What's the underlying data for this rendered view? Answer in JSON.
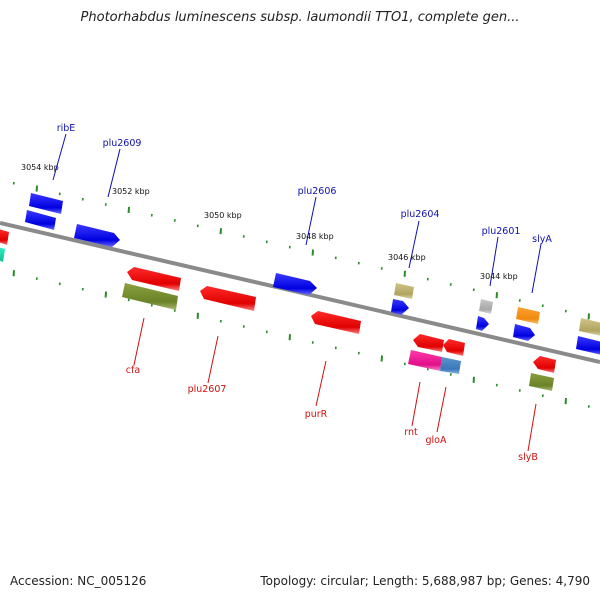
{
  "title": "Photorhabdus luminescens subsp. laumondii TTO1, complete gen...",
  "footer": {
    "accession": "Accession: NC_005126",
    "summary": "Topology: circular; Length: 5,688,987 bp; Genes: 4,790"
  },
  "colors": {
    "backbone": "#8a8a8a",
    "tick": "#2a8a2a",
    "label_forward": "#1010b0",
    "label_reverse": "#d01010"
  },
  "kbp_labels": [
    "3054 kbp",
    "3052 kbp",
    "3050 kbp",
    "3048 kbp",
    "3046 kbp",
    "3044 kbp"
  ],
  "upper_genes": [
    "ribE",
    "plu2609",
    "plu2606",
    "plu2604",
    "plu2601",
    "slyA"
  ],
  "lower_genes": [
    "cfa",
    "plu2607",
    "purR",
    "rnt",
    "gloA",
    "slyB"
  ]
}
